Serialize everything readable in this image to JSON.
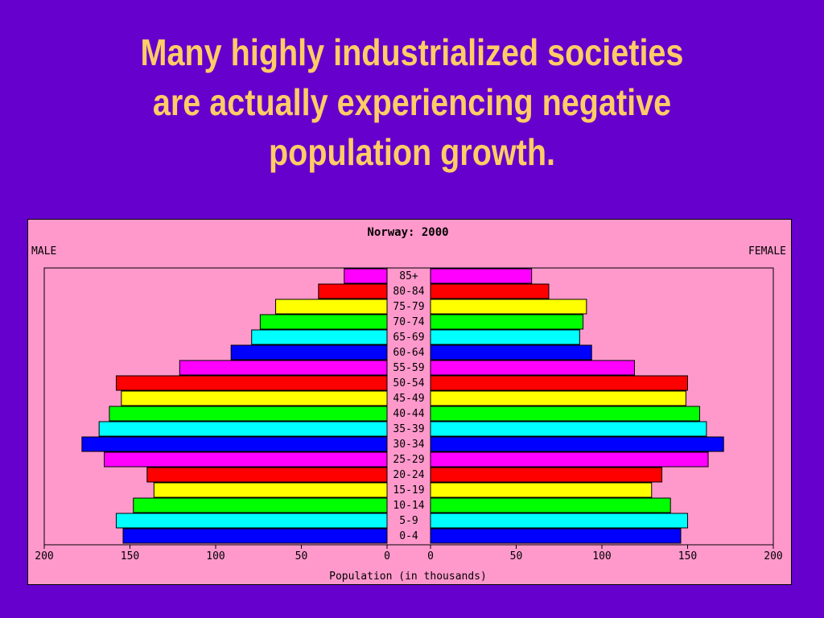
{
  "slide": {
    "title_lines": [
      "Many highly industrialized societies",
      "are actually experiencing negative",
      "population growth."
    ]
  },
  "chart_data": {
    "type": "bar",
    "orientation": "horizontal-pyramid",
    "title": "Norway: 2000",
    "left_label": "MALE",
    "right_label": "FEMALE",
    "xlabel": "Population (in thousands)",
    "xlim": [
      0,
      200
    ],
    "xticks": [
      0,
      50,
      100,
      150,
      200
    ],
    "categories": [
      "85+",
      "80-84",
      "75-79",
      "70-74",
      "65-69",
      "60-64",
      "55-59",
      "50-54",
      "45-49",
      "40-44",
      "35-39",
      "30-34",
      "25-29",
      "20-24",
      "15-19",
      "10-14",
      "5-9",
      "0-4"
    ],
    "colors": [
      "#ff00ff",
      "#ff0000",
      "#ffff00",
      "#00ff00",
      "#00ffff",
      "#0000ff",
      "#ff00ff",
      "#ff0000",
      "#ffff00",
      "#00ff00",
      "#00ffff",
      "#0000ff",
      "#ff00ff",
      "#ff0000",
      "#ffff00",
      "#00ff00",
      "#00ffff",
      "#0000ff"
    ],
    "series": [
      {
        "name": "MALE",
        "values": [
          25,
          40,
          65,
          74,
          79,
          91,
          121,
          158,
          155,
          162,
          168,
          178,
          165,
          140,
          136,
          148,
          158,
          154
        ]
      },
      {
        "name": "FEMALE",
        "values": [
          59,
          69,
          91,
          89,
          87,
          94,
          119,
          150,
          149,
          157,
          161,
          171,
          162,
          135,
          129,
          140,
          150,
          146
        ]
      }
    ]
  }
}
